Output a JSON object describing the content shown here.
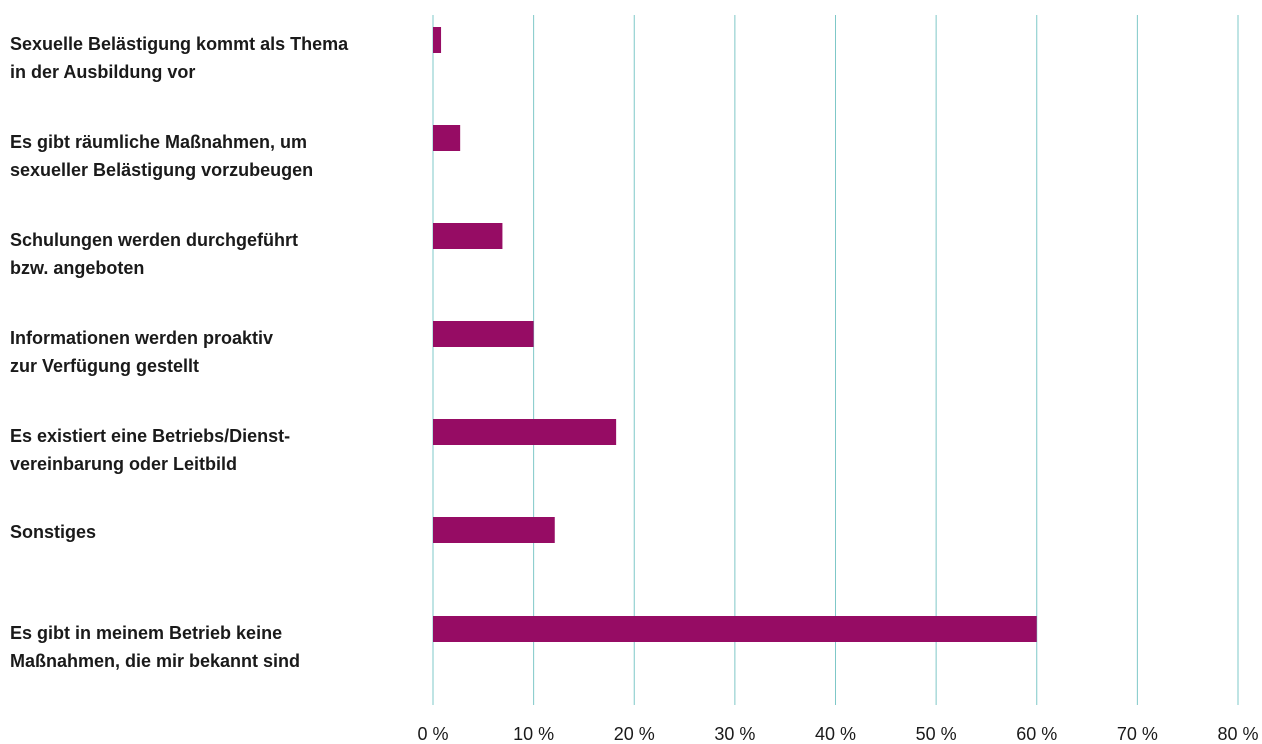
{
  "chart_data": {
    "type": "bar",
    "orientation": "horizontal",
    "categories": [
      [
        "Sexuelle Belästigung kommt als Thema",
        "in der Ausbildung vor"
      ],
      [
        "Es gibt räumliche Maßnahmen, um",
        "sexueller Belästigung vorzubeugen"
      ],
      [
        "Schulungen werden durchgeführt",
        "bzw. angeboten"
      ],
      [
        "Informationen werden proaktiv",
        "zur Verfügung gestellt"
      ],
      [
        "Es existiert eine Betriebs/Dienst-",
        "vereinbarung oder Leitbild"
      ],
      [
        "Sonstiges"
      ],
      [
        "Es gibt in meinem Betrieb keine",
        "Maßnahmen, die mir bekannt sind"
      ]
    ],
    "values": [
      0.8,
      2.7,
      6.9,
      10.0,
      18.2,
      12.1,
      60.0
    ],
    "color": "#960c64",
    "xlim": [
      0,
      80
    ],
    "xticks": [
      {
        "value": 0,
        "label": "0 %"
      },
      {
        "value": 10,
        "label": "10 %"
      },
      {
        "value": 20,
        "label": "20 %"
      },
      {
        "value": 30,
        "label": "30 %"
      },
      {
        "value": 40,
        "label": "40 %"
      },
      {
        "value": 50,
        "label": "50 %"
      },
      {
        "value": 60,
        "label": "60 %"
      },
      {
        "value": 70,
        "label": "70 %"
      },
      {
        "value": 80,
        "label": "80 %"
      }
    ],
    "grid": true,
    "grid_color": "#7fc8c8"
  }
}
